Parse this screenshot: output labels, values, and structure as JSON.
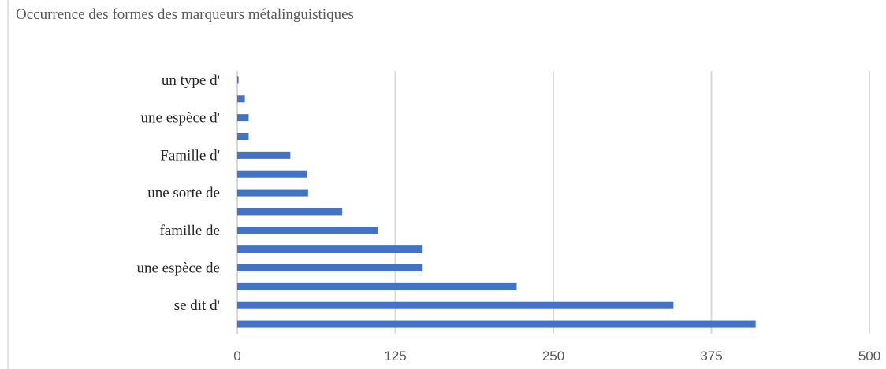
{
  "chart_data": {
    "type": "bar",
    "orientation": "horizontal",
    "title": "Occurrence des formes des marqueurs métalinguistiques",
    "categories": [
      "",
      "se dit d'",
      "",
      "une espèce de",
      "",
      "famille de",
      "",
      "une sorte de",
      "",
      "Famille d'",
      "",
      "une espèce d'",
      "",
      "un type d'"
    ],
    "series": [
      {
        "values": [
          410,
          345,
          221,
          146,
          146,
          111,
          83,
          56,
          55,
          42,
          9,
          9,
          6,
          1
        ]
      }
    ],
    "xlim": [
      0,
      500
    ],
    "xticks": [
      0,
      125,
      250,
      375,
      500
    ],
    "grid": true,
    "legend": "none",
    "bar_color": "#4472c4"
  }
}
